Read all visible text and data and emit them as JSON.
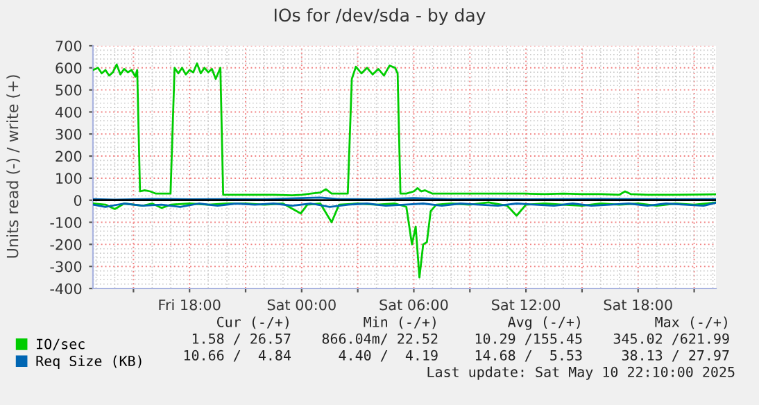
{
  "chart_data": {
    "type": "line",
    "title": "IOs for /dev/sda - by day",
    "ylabel": "Units read (-) / write (+)",
    "xlim": [
      "2025-05-09T12:50",
      "2025-05-10T22:10"
    ],
    "ylim": [
      -400,
      700
    ],
    "xticks": [
      {
        "value": "2025-05-09T15:00",
        "label": null
      },
      {
        "value": "2025-05-09T18:00",
        "label": "Fri 18:00"
      },
      {
        "value": "2025-05-09T21:00",
        "label": null
      },
      {
        "value": "2025-05-10T00:00",
        "label": "Sat 00:00"
      },
      {
        "value": "2025-05-10T03:00",
        "label": null
      },
      {
        "value": "2025-05-10T06:00",
        "label": "Sat 06:00"
      },
      {
        "value": "2025-05-10T09:00",
        "label": null
      },
      {
        "value": "2025-05-10T12:00",
        "label": "Sat 12:00"
      },
      {
        "value": "2025-05-10T15:00",
        "label": null
      },
      {
        "value": "2025-05-10T18:00",
        "label": "Sat 18:00"
      },
      {
        "value": "2025-05-10T21:00",
        "label": null
      }
    ],
    "yticks": [
      -400,
      -300,
      -200,
      -100,
      0,
      100,
      200,
      300,
      400,
      500,
      600,
      700
    ],
    "grid": true,
    "legend": "bottom left",
    "marker": "none",
    "line_style": "solid",
    "ref_lines": [
      {
        "axis": "y",
        "value": 0,
        "color": "#000000"
      }
    ],
    "series": [
      {
        "name": "IO/sec",
        "color": "#00cc00",
        "x": [
          "2025-05-09T12:50",
          "2025-05-09T13:06",
          "2025-05-09T13:18",
          "2025-05-09T13:30",
          "2025-05-09T13:42",
          "2025-05-09T13:54",
          "2025-05-09T14:06",
          "2025-05-09T14:18",
          "2025-05-09T14:30",
          "2025-05-09T14:42",
          "2025-05-09T14:54",
          "2025-05-09T15:06",
          "2025-05-09T15:12",
          "2025-05-09T15:21",
          "2025-05-09T15:36",
          "2025-05-09T15:54",
          "2025-05-09T16:12",
          "2025-05-09T16:36",
          "2025-05-09T16:59",
          "2025-05-09T17:12",
          "2025-05-09T17:24",
          "2025-05-09T17:36",
          "2025-05-09T17:48",
          "2025-05-09T18:00",
          "2025-05-09T18:12",
          "2025-05-09T18:24",
          "2025-05-09T18:36",
          "2025-05-09T18:48",
          "2025-05-09T19:00",
          "2025-05-09T19:12",
          "2025-05-09T19:24",
          "2025-05-09T19:39",
          "2025-05-09T19:48",
          "2025-05-09T20:30",
          "2025-05-09T21:30",
          "2025-05-09T22:30",
          "2025-05-09T23:30",
          "2025-05-10T00:00",
          "2025-05-10T00:30",
          "2025-05-10T01:00",
          "2025-05-10T01:18",
          "2025-05-10T01:36",
          "2025-05-10T02:00",
          "2025-05-10T02:28",
          "2025-05-10T02:41",
          "2025-05-10T02:54",
          "2025-05-10T03:12",
          "2025-05-10T03:30",
          "2025-05-10T03:48",
          "2025-05-10T04:06",
          "2025-05-10T04:24",
          "2025-05-10T04:42",
          "2025-05-10T05:00",
          "2025-05-10T05:08",
          "2025-05-10T05:17",
          "2025-05-10T05:36",
          "2025-05-10T06:00",
          "2025-05-10T06:12",
          "2025-05-10T06:24",
          "2025-05-10T06:36",
          "2025-05-10T07:00",
          "2025-05-10T08:00",
          "2025-05-10T09:00",
          "2025-05-10T10:00",
          "2025-05-10T11:00",
          "2025-05-10T12:00",
          "2025-05-10T13:00",
          "2025-05-10T14:00",
          "2025-05-10T15:00",
          "2025-05-10T16:00",
          "2025-05-10T17:00",
          "2025-05-10T17:18",
          "2025-05-10T17:36",
          "2025-05-10T18:30",
          "2025-05-10T20:00",
          "2025-05-10T22:10"
        ],
        "values": [
          590,
          600,
          575,
          590,
          565,
          580,
          615,
          570,
          595,
          580,
          590,
          560,
          590,
          40,
          45,
          40,
          30,
          30,
          30,
          600,
          575,
          600,
          570,
          590,
          580,
          620,
          575,
          600,
          580,
          595,
          550,
          600,
          25,
          25,
          25,
          25,
          22,
          25,
          30,
          35,
          50,
          30,
          30,
          30,
          550,
          605,
          575,
          600,
          570,
          595,
          565,
          610,
          600,
          575,
          30,
          30,
          40,
          55,
          40,
          45,
          30,
          30,
          30,
          30,
          30,
          30,
          28,
          30,
          28,
          28,
          25,
          40,
          28,
          25,
          25,
          27
        ]
      },
      {
        "color": "#00cc00",
        "x": [
          "2025-05-09T12:50",
          "2025-05-09T13:30",
          "2025-05-09T14:00",
          "2025-05-09T14:30",
          "2025-05-09T15:30",
          "2025-05-09T16:00",
          "2025-05-09T16:30",
          "2025-05-09T17:00",
          "2025-05-09T18:00",
          "2025-05-09T19:00",
          "2025-05-09T20:00",
          "2025-05-09T21:00",
          "2025-05-09T22:00",
          "2025-05-09T23:00",
          "2025-05-09T23:57",
          "2025-05-10T00:18",
          "2025-05-10T01:00",
          "2025-05-10T01:36",
          "2025-05-10T02:00",
          "2025-05-10T03:00",
          "2025-05-10T04:00",
          "2025-05-10T05:00",
          "2025-05-10T05:36",
          "2025-05-10T05:54",
          "2025-05-10T06:06",
          "2025-05-10T06:18",
          "2025-05-10T06:30",
          "2025-05-10T06:42",
          "2025-05-10T06:54",
          "2025-05-10T07:12",
          "2025-05-10T08:00",
          "2025-05-10T09:00",
          "2025-05-10T10:00",
          "2025-05-10T11:00",
          "2025-05-10T11:30",
          "2025-05-10T12:00",
          "2025-05-10T13:00",
          "2025-05-10T14:00",
          "2025-05-10T15:00",
          "2025-05-10T16:00",
          "2025-05-10T17:00",
          "2025-05-10T18:00",
          "2025-05-10T19:00",
          "2025-05-10T20:00",
          "2025-05-10T21:00",
          "2025-05-10T22:10"
        ],
        "values": [
          -15,
          -20,
          -40,
          -15,
          -25,
          -15,
          -35,
          -20,
          -15,
          -20,
          -15,
          -15,
          -20,
          -15,
          -60,
          -20,
          -15,
          -100,
          -20,
          -15,
          -20,
          -15,
          -30,
          -200,
          -120,
          -350,
          -200,
          -190,
          -50,
          -20,
          -15,
          -20,
          -10,
          -25,
          -70,
          -20,
          -15,
          -20,
          -25,
          -15,
          -20,
          -15,
          -25,
          -15,
          -20,
          -10
        ]
      },
      {
        "name": "Req Size (KB)",
        "color": "#0066b3",
        "x": [
          "2025-05-09T12:50",
          "2025-05-09T14:00",
          "2025-05-09T16:00",
          "2025-05-09T18:00",
          "2025-05-09T20:00",
          "2025-05-09T22:00",
          "2025-05-10T00:00",
          "2025-05-10T01:00",
          "2025-05-10T02:00",
          "2025-05-10T04:00",
          "2025-05-10T06:00",
          "2025-05-10T08:00",
          "2025-05-10T10:00",
          "2025-05-10T12:00",
          "2025-05-10T14:00",
          "2025-05-10T16:00",
          "2025-05-10T18:00",
          "2025-05-10T20:00",
          "2025-05-10T22:10"
        ],
        "values": [
          5,
          3,
          6,
          4,
          5,
          4,
          10,
          12,
          5,
          4,
          10,
          5,
          6,
          4,
          5,
          6,
          5,
          4,
          5
        ]
      },
      {
        "color": "#0066b3",
        "x": [
          "2025-05-09T12:50",
          "2025-05-09T13:30",
          "2025-05-09T14:30",
          "2025-05-09T15:30",
          "2025-05-09T16:30",
          "2025-05-09T17:30",
          "2025-05-09T18:30",
          "2025-05-09T19:30",
          "2025-05-09T20:30",
          "2025-05-09T21:30",
          "2025-05-09T22:30",
          "2025-05-09T23:30",
          "2025-05-10T00:30",
          "2025-05-10T01:30",
          "2025-05-10T02:30",
          "2025-05-10T03:30",
          "2025-05-10T04:30",
          "2025-05-10T05:30",
          "2025-05-10T06:30",
          "2025-05-10T07:30",
          "2025-05-10T08:30",
          "2025-05-10T09:30",
          "2025-05-10T10:30",
          "2025-05-10T11:30",
          "2025-05-10T12:30",
          "2025-05-10T13:30",
          "2025-05-10T14:30",
          "2025-05-10T15:30",
          "2025-05-10T16:30",
          "2025-05-10T17:30",
          "2025-05-10T18:30",
          "2025-05-10T19:30",
          "2025-05-10T20:30",
          "2025-05-10T21:30",
          "2025-05-10T22:10"
        ],
        "values": [
          -20,
          -30,
          -15,
          -25,
          -20,
          -30,
          -15,
          -25,
          -15,
          -20,
          -15,
          -25,
          -15,
          -30,
          -20,
          -15,
          -25,
          -20,
          -15,
          -25,
          -15,
          -20,
          -25,
          -15,
          -20,
          -25,
          -15,
          -25,
          -20,
          -15,
          -25,
          -15,
          -20,
          -25,
          -11
        ]
      }
    ],
    "annotations": [
      "Cur (-/+)",
      "Min (-/+)",
      "Avg (-/+)",
      "Max (-/+)",
      "1.58 / 26.57",
      "866.04m/ 22.52",
      "10.29 /155.45",
      "345.02 /621.99",
      "10.66 /  4.84",
      "4.40 /  4.19",
      "14.68 /  5.53",
      "38.13 / 27.97",
      "Last update: Sat May 10 22:10:00 2025"
    ]
  }
}
